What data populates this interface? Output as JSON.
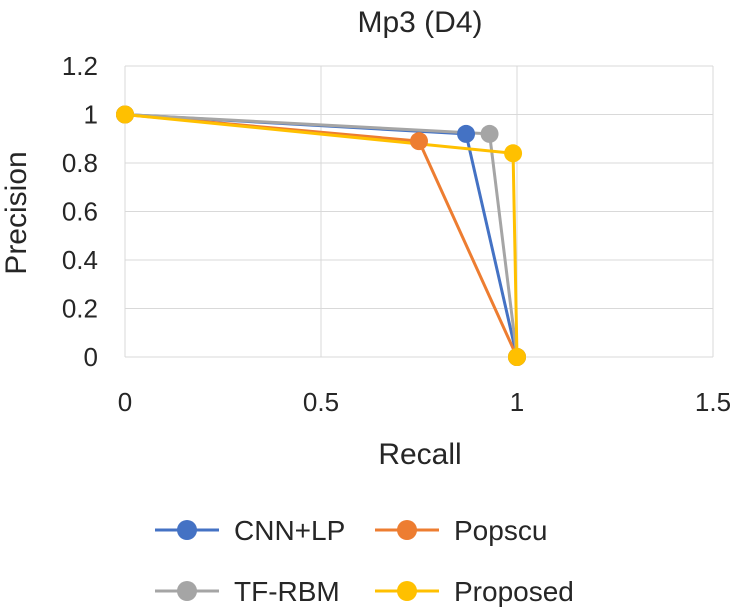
{
  "chart_data": {
    "type": "scatter",
    "title": "Mp3 (D4)",
    "xlabel": "Recall",
    "ylabel": "Precision",
    "xlim": [
      0,
      1.5
    ],
    "ylim": [
      0,
      1.2
    ],
    "x_ticks": [
      0,
      0.5,
      1,
      1.5
    ],
    "y_ticks": [
      0,
      0.2,
      0.4,
      0.6,
      0.8,
      1,
      1.2
    ],
    "x_tick_labels": [
      "0",
      "0.5",
      "1",
      "1.5"
    ],
    "y_tick_labels": [
      "0",
      "0.2",
      "0.4",
      "0.6",
      "0.8",
      "1",
      "1.2"
    ],
    "grid": true,
    "legend_position": "bottom",
    "series": [
      {
        "name": "CNN+LP",
        "color": "#4472C4",
        "x": [
          0,
          0.87,
          1
        ],
        "y": [
          1,
          0.92,
          0
        ]
      },
      {
        "name": "Popscu",
        "color": "#ED7D31",
        "x": [
          0,
          0.75,
          1
        ],
        "y": [
          1,
          0.89,
          0
        ]
      },
      {
        "name": "TF-RBM",
        "color": "#A5A5A5",
        "x": [
          0,
          0.93,
          1
        ],
        "y": [
          1,
          0.92,
          0
        ]
      },
      {
        "name": "Proposed",
        "color": "#FFC000",
        "x": [
          0,
          0.99,
          1
        ],
        "y": [
          1,
          0.84,
          0
        ]
      }
    ]
  }
}
